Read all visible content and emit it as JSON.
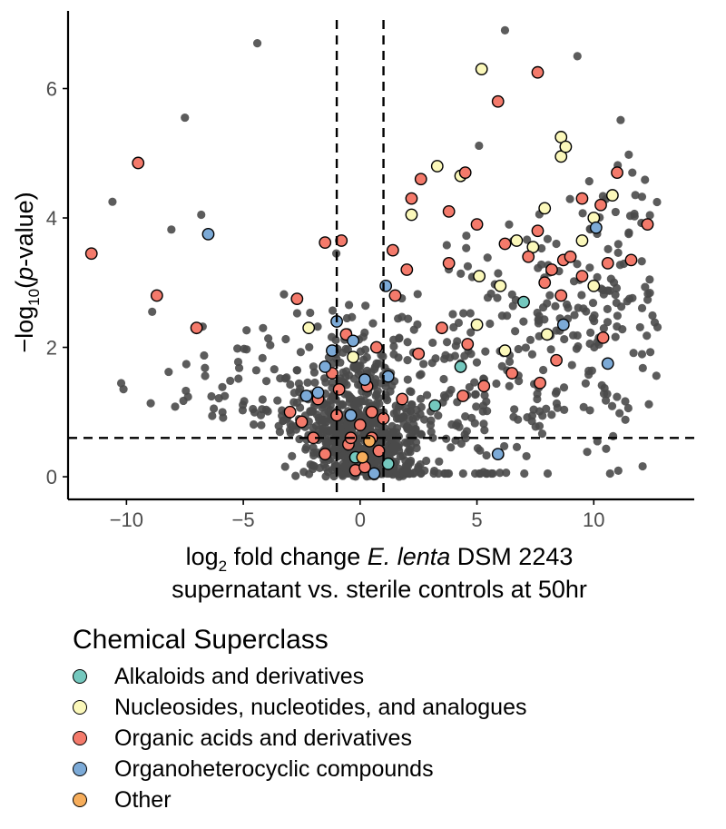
{
  "chart_data": {
    "type": "scatter",
    "title": "",
    "xlabel": {
      "line1_prefix": "log",
      "line1_sub": "2",
      "line1_mid": " fold change ",
      "line1_italic": "E. lenta",
      "line1_suffix": " DSM 2243",
      "line2": "supernatant vs. sterile controls at 50hr"
    },
    "ylabel": {
      "prefix": "−log",
      "sub": "10",
      "open": "(",
      "italic": "p",
      "suffix": "-value)"
    },
    "xlim": [
      -12.5,
      14.3
    ],
    "ylim": [
      -0.35,
      7.2
    ],
    "x_ticks": [
      -10,
      -5,
      0,
      5,
      10
    ],
    "x_tick_labels": [
      "−10",
      "−5",
      "0",
      "5",
      "10"
    ],
    "y_ticks": [
      0,
      2,
      4,
      6
    ],
    "y_tick_labels": [
      "0",
      "2",
      "4",
      "6"
    ],
    "thresholds": {
      "vlines": [
        -1,
        1
      ],
      "hline": 0.6
    },
    "grid": false,
    "legend_position": "bottom",
    "legend": {
      "title": "Chemical Superclass",
      "items": [
        {
          "key": "alkaloids",
          "label": "Alkaloids and derivatives",
          "color": "#74c8be"
        },
        {
          "key": "nucleosides",
          "label": "Nucleosides, nucleotides, and analogues",
          "color": "#fbf8ba"
        },
        {
          "key": "organic_acids",
          "label": "Organic acids and derivatives",
          "color": "#f47a6b"
        },
        {
          "key": "organoheterocyclic",
          "label": "Organoheterocyclic compounds",
          "color": "#7caad7"
        },
        {
          "key": "other",
          "label": "Other",
          "color": "#f6ad5b"
        }
      ]
    },
    "background_color": "#4a4a4a",
    "series": [
      {
        "name": "Alkaloids and derivatives",
        "color": "#74c8be",
        "points": [
          [
            1.2,
            0.2
          ],
          [
            3.2,
            1.1
          ],
          [
            4.3,
            1.7
          ],
          [
            7,
            2.7
          ],
          [
            -0.2,
            0.3
          ]
        ]
      },
      {
        "name": "Nucleosides, nucleotides, and analogues",
        "color": "#fbf8ba",
        "points": [
          [
            -2.2,
            2.3
          ],
          [
            -0.3,
            1.85
          ],
          [
            2.2,
            4.05
          ],
          [
            3.3,
            4.8
          ],
          [
            4.3,
            4.65
          ],
          [
            5.2,
            6.3
          ],
          [
            5.1,
            3.1
          ],
          [
            5,
            2.35
          ],
          [
            6.2,
            1.95
          ],
          [
            6,
            2.95
          ],
          [
            6.7,
            3.65
          ],
          [
            7.4,
            3.55
          ],
          [
            7.9,
            4.15
          ],
          [
            8,
            2.2
          ],
          [
            8.6,
            5.25
          ],
          [
            8.6,
            4.95
          ],
          [
            8.8,
            5.1
          ],
          [
            9.5,
            3.65
          ],
          [
            10.8,
            4.35
          ],
          [
            10,
            4.0
          ],
          [
            10,
            2.95
          ]
        ]
      },
      {
        "name": "Organic acids and derivatives",
        "color": "#f47a6b",
        "points": [
          [
            -11.5,
            3.45
          ],
          [
            -9.5,
            4.85
          ],
          [
            -8.7,
            2.8
          ],
          [
            -7,
            2.3
          ],
          [
            -2.7,
            2.75
          ],
          [
            -1.5,
            3.62
          ],
          [
            -0.8,
            3.65
          ],
          [
            -2.5,
            0.85
          ],
          [
            -2,
            0.6
          ],
          [
            -1.5,
            0.35
          ],
          [
            -3,
            1.0
          ],
          [
            -1,
            0.95
          ],
          [
            -0.5,
            0.5
          ],
          [
            0,
            0.8
          ],
          [
            0.5,
            1.0
          ],
          [
            0.8,
            0.4
          ],
          [
            -1.8,
            1.2
          ],
          [
            -1.2,
            1.6
          ],
          [
            -0.6,
            2.2
          ],
          [
            0.3,
            1.4
          ],
          [
            0.7,
            2.0
          ],
          [
            -0.2,
            0.1
          ],
          [
            0.2,
            0.15
          ],
          [
            1.4,
            3.5
          ],
          [
            1.5,
            2.8
          ],
          [
            2,
            3.2
          ],
          [
            2.2,
            4.3
          ],
          [
            2.6,
            4.6
          ],
          [
            3.8,
            3.3
          ],
          [
            3.8,
            4.1
          ],
          [
            4.4,
            1.25
          ],
          [
            4.5,
            4.7
          ],
          [
            5,
            3.9
          ],
          [
            5.9,
            5.8
          ],
          [
            5.3,
            1.4
          ],
          [
            6.2,
            3.6
          ],
          [
            6.5,
            1.6
          ],
          [
            7.2,
            3.4
          ],
          [
            7.6,
            6.25
          ],
          [
            7.6,
            3.8
          ],
          [
            7.7,
            1.45
          ],
          [
            7.9,
            3.0
          ],
          [
            8.2,
            3.2
          ],
          [
            8.6,
            2.8
          ],
          [
            8.7,
            3.35
          ],
          [
            9,
            3.4
          ],
          [
            9.5,
            4.3
          ],
          [
            9.5,
            3.1
          ],
          [
            10.3,
            4.2
          ],
          [
            10.6,
            3.3
          ],
          [
            10.4,
            2.15
          ],
          [
            11,
            4.7
          ],
          [
            11.6,
            3.35
          ],
          [
            12.3,
            3.9
          ],
          [
            3.5,
            2.3
          ],
          [
            4.6,
            2.05
          ],
          [
            8.4,
            1.8
          ],
          [
            2.5,
            1.9
          ],
          [
            -0.9,
            1.35
          ],
          [
            1.8,
            1.2
          ],
          [
            0.5,
            0.6
          ],
          [
            -0.4,
            0.6
          ],
          [
            1.0,
            0.9
          ]
        ]
      },
      {
        "name": "Organoheterocyclic compounds",
        "color": "#7caad7",
        "points": [
          [
            -6.5,
            3.75
          ],
          [
            -2.3,
            1.25
          ],
          [
            -1.5,
            1.7
          ],
          [
            -1.0,
            2.4
          ],
          [
            -1.2,
            1.95
          ],
          [
            -0.4,
            0.95
          ],
          [
            0.2,
            1.5
          ],
          [
            1.1,
            2.95
          ],
          [
            1.2,
            1.55
          ],
          [
            -0.3,
            2.1
          ],
          [
            5.9,
            0.35
          ],
          [
            8.7,
            2.35
          ],
          [
            10.1,
            3.85
          ],
          [
            10.6,
            1.75
          ],
          [
            -1.8,
            1.3
          ],
          [
            0.6,
            0.05
          ]
        ]
      },
      {
        "name": "Other",
        "color": "#f6ad5b",
        "points": [
          [
            0.4,
            0.55
          ],
          [
            0.1,
            0.3
          ]
        ]
      }
    ]
  }
}
